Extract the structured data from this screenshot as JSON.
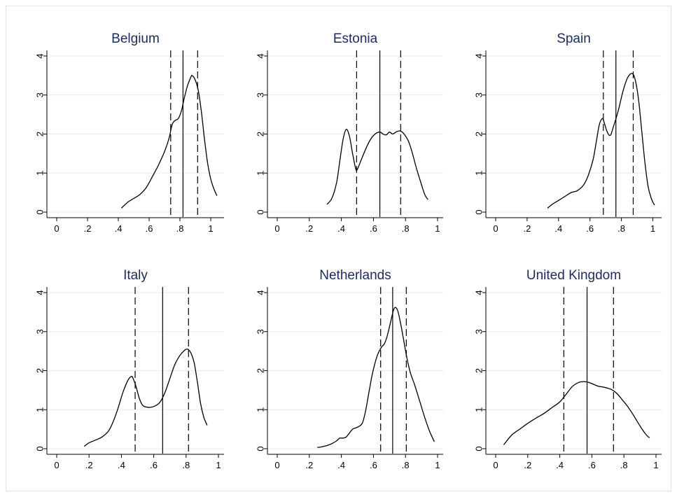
{
  "chart_data": [
    {
      "type": "line",
      "title": "Belgium",
      "xlabel": "",
      "ylabel": "",
      "xlim": [
        0,
        1.05
      ],
      "ylim": [
        0,
        4
      ],
      "xticks": [
        "0",
        ".2",
        ".4",
        ".6",
        ".8",
        "1"
      ],
      "xtick_values": [
        0,
        0.2,
        0.4,
        0.6,
        0.8,
        1
      ],
      "yticks": [
        "0",
        "1",
        "2",
        "3",
        "4"
      ],
      "grid": "horizontal",
      "series": [
        {
          "x": [
            0.42,
            0.46,
            0.5,
            0.54,
            0.58,
            0.62,
            0.66,
            0.7,
            0.73,
            0.75,
            0.77,
            0.79,
            0.81,
            0.83,
            0.85,
            0.87,
            0.88,
            0.9,
            0.92,
            0.94,
            0.96,
            0.98,
            1.0,
            1.02,
            1.04
          ],
          "y": [
            0.1,
            0.25,
            0.35,
            0.45,
            0.62,
            0.9,
            1.2,
            1.55,
            1.9,
            2.25,
            2.35,
            2.4,
            2.6,
            2.95,
            3.25,
            3.45,
            3.5,
            3.38,
            3.1,
            2.55,
            1.85,
            1.25,
            0.85,
            0.6,
            0.42
          ]
        }
      ],
      "vlines": [
        {
          "x": 0.74,
          "style": "dashed"
        },
        {
          "x": 0.82,
          "style": "solid"
        },
        {
          "x": 0.915,
          "style": "dashed"
        }
      ]
    },
    {
      "type": "line",
      "title": "Estonia",
      "xlabel": "",
      "ylabel": "",
      "xlim": [
        0,
        1
      ],
      "ylim": [
        0,
        4
      ],
      "xticks": [
        "0",
        ".2",
        ".4",
        ".6",
        ".8",
        "1"
      ],
      "xtick_values": [
        0,
        0.2,
        0.4,
        0.6,
        0.8,
        1
      ],
      "yticks": [
        "0",
        "1",
        "2",
        "3",
        "4"
      ],
      "grid": "horizontal",
      "series": [
        {
          "x": [
            0.31,
            0.34,
            0.37,
            0.39,
            0.41,
            0.43,
            0.45,
            0.47,
            0.49,
            0.5,
            0.52,
            0.55,
            0.58,
            0.61,
            0.64,
            0.66,
            0.68,
            0.7,
            0.72,
            0.74,
            0.76,
            0.78,
            0.8,
            0.82,
            0.84,
            0.87,
            0.9,
            0.92,
            0.94
          ],
          "y": [
            0.2,
            0.35,
            0.75,
            1.3,
            1.85,
            2.12,
            1.95,
            1.5,
            1.1,
            1.1,
            1.3,
            1.6,
            1.85,
            2.0,
            2.05,
            2.0,
            1.98,
            2.05,
            2.0,
            2.05,
            2.08,
            2.05,
            1.95,
            1.8,
            1.55,
            1.1,
            0.7,
            0.45,
            0.32
          ]
        }
      ],
      "vlines": [
        {
          "x": 0.495,
          "style": "dashed"
        },
        {
          "x": 0.64,
          "style": "solid"
        },
        {
          "x": 0.77,
          "style": "dashed"
        }
      ]
    },
    {
      "type": "line",
      "title": "Spain",
      "xlabel": "",
      "ylabel": "",
      "xlim": [
        0,
        1.02
      ],
      "ylim": [
        0,
        4
      ],
      "xticks": [
        "0",
        ".2",
        ".4",
        ".6",
        ".8",
        "1"
      ],
      "xtick_values": [
        0,
        0.2,
        0.4,
        0.6,
        0.8,
        1
      ],
      "yticks": [
        "0",
        "1",
        "2",
        "3",
        "4"
      ],
      "grid": "horizontal",
      "series": [
        {
          "x": [
            0.33,
            0.36,
            0.4,
            0.44,
            0.48,
            0.52,
            0.56,
            0.59,
            0.62,
            0.64,
            0.66,
            0.68,
            0.69,
            0.71,
            0.73,
            0.75,
            0.78,
            0.81,
            0.84,
            0.87,
            0.89,
            0.91,
            0.93,
            0.95,
            0.97,
            0.99,
            1.01
          ],
          "y": [
            0.1,
            0.2,
            0.3,
            0.4,
            0.5,
            0.55,
            0.7,
            0.95,
            1.35,
            1.8,
            2.25,
            2.4,
            2.3,
            2.05,
            1.97,
            2.2,
            2.6,
            3.1,
            3.45,
            3.55,
            3.35,
            2.85,
            2.05,
            1.25,
            0.65,
            0.35,
            0.18
          ]
        }
      ],
      "vlines": [
        {
          "x": 0.685,
          "style": "dashed"
        },
        {
          "x": 0.765,
          "style": "solid"
        },
        {
          "x": 0.875,
          "style": "dashed"
        }
      ]
    },
    {
      "type": "line",
      "title": "Italy",
      "xlabel": "",
      "ylabel": "",
      "xlim": [
        0,
        1
      ],
      "ylim": [
        0,
        4
      ],
      "xticks": [
        "0",
        ".2",
        ".4",
        ".6",
        ".8",
        "1"
      ],
      "xtick_values": [
        0,
        0.2,
        0.4,
        0.6,
        0.8,
        1
      ],
      "yticks": [
        "0",
        "1",
        "2",
        "3",
        "4"
      ],
      "grid": "horizontal",
      "series": [
        {
          "x": [
            0.17,
            0.2,
            0.24,
            0.28,
            0.32,
            0.35,
            0.38,
            0.41,
            0.44,
            0.46,
            0.47,
            0.49,
            0.51,
            0.53,
            0.55,
            0.58,
            0.61,
            0.64,
            0.67,
            0.7,
            0.73,
            0.76,
            0.79,
            0.81,
            0.83,
            0.85,
            0.87,
            0.89,
            0.91,
            0.93
          ],
          "y": [
            0.06,
            0.15,
            0.22,
            0.3,
            0.45,
            0.7,
            1.05,
            1.45,
            1.75,
            1.85,
            1.82,
            1.6,
            1.3,
            1.12,
            1.07,
            1.06,
            1.1,
            1.2,
            1.45,
            1.8,
            2.15,
            2.38,
            2.52,
            2.55,
            2.45,
            2.2,
            1.7,
            1.15,
            0.8,
            0.6
          ]
        }
      ],
      "vlines": [
        {
          "x": 0.485,
          "style": "dashed"
        },
        {
          "x": 0.655,
          "style": "solid"
        },
        {
          "x": 0.815,
          "style": "dashed"
        }
      ]
    },
    {
      "type": "line",
      "title": "Netherlands",
      "xlabel": "",
      "ylabel": "",
      "xlim": [
        0,
        1
      ],
      "ylim": [
        0,
        4
      ],
      "xticks": [
        "0",
        ".2",
        ".4",
        ".6",
        ".8",
        "1"
      ],
      "xtick_values": [
        0,
        0.2,
        0.4,
        0.6,
        0.8,
        1
      ],
      "yticks": [
        "0",
        "1",
        "2",
        "3",
        "4"
      ],
      "grid": "horizontal",
      "series": [
        {
          "x": [
            0.25,
            0.28,
            0.31,
            0.34,
            0.37,
            0.39,
            0.41,
            0.43,
            0.45,
            0.47,
            0.5,
            0.53,
            0.55,
            0.57,
            0.59,
            0.61,
            0.63,
            0.65,
            0.67,
            0.69,
            0.71,
            0.73,
            0.75,
            0.77,
            0.79,
            0.81,
            0.83,
            0.86,
            0.89,
            0.92,
            0.95,
            0.98
          ],
          "y": [
            0.03,
            0.05,
            0.08,
            0.13,
            0.2,
            0.27,
            0.27,
            0.3,
            0.4,
            0.5,
            0.55,
            0.65,
            0.95,
            1.4,
            1.85,
            2.2,
            2.45,
            2.6,
            2.7,
            2.95,
            3.3,
            3.6,
            3.55,
            3.2,
            2.75,
            2.3,
            1.95,
            1.6,
            1.2,
            0.8,
            0.45,
            0.18
          ]
        }
      ],
      "vlines": [
        {
          "x": 0.645,
          "style": "dashed"
        },
        {
          "x": 0.72,
          "style": "solid"
        },
        {
          "x": 0.805,
          "style": "dashed"
        }
      ]
    },
    {
      "type": "line",
      "title": "United Kingdom",
      "xlabel": "",
      "ylabel": "",
      "xlim": [
        0,
        1
      ],
      "ylim": [
        0,
        4
      ],
      "xticks": [
        "0",
        ".2",
        ".4",
        ".6",
        ".8",
        "1"
      ],
      "xtick_values": [
        0,
        0.2,
        0.4,
        0.6,
        0.8,
        1
      ],
      "yticks": [
        "0",
        "1",
        "2",
        "3",
        "4"
      ],
      "grid": "horizontal",
      "series": [
        {
          "x": [
            0.05,
            0.1,
            0.15,
            0.2,
            0.25,
            0.3,
            0.35,
            0.4,
            0.44,
            0.48,
            0.52,
            0.55,
            0.58,
            0.61,
            0.64,
            0.67,
            0.7,
            0.73,
            0.76,
            0.79,
            0.82,
            0.85,
            0.88,
            0.91,
            0.94,
            0.96
          ],
          "y": [
            0.1,
            0.35,
            0.5,
            0.65,
            0.78,
            0.9,
            1.05,
            1.2,
            1.4,
            1.6,
            1.7,
            1.72,
            1.7,
            1.65,
            1.6,
            1.58,
            1.55,
            1.5,
            1.4,
            1.25,
            1.1,
            0.92,
            0.72,
            0.52,
            0.35,
            0.28
          ]
        }
      ],
      "vlines": [
        {
          "x": 0.425,
          "style": "dashed"
        },
        {
          "x": 0.57,
          "style": "solid"
        },
        {
          "x": 0.735,
          "style": "dashed"
        }
      ]
    }
  ]
}
